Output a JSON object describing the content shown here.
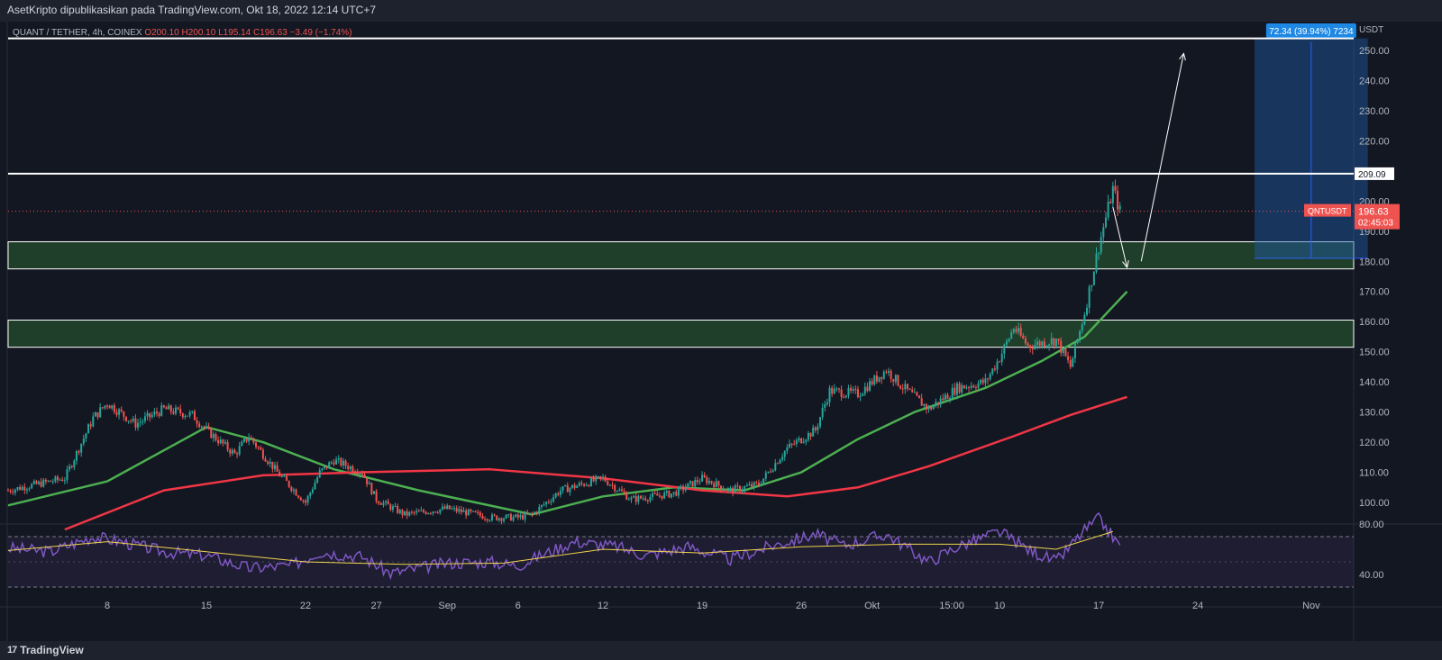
{
  "header": {
    "attribution": "AsetKripto dipublikasikan pada TradingView.com, Okt 18, 2022 12:14 UTC+7"
  },
  "legend": {
    "symbol": "QUANT / TETHER, 4h, COINEX",
    "ohlc": "O200.10 H200.10 L195.14 C196.63 −3.49 (−1.74%)"
  },
  "footer": {
    "brand": "TradingView",
    "logo_icon": "tradingview-logo-icon"
  },
  "colors": {
    "background": "#131722",
    "up": "#26a69a",
    "down": "#ef5350",
    "ma_fast": "#4caf50",
    "ma_slow": "#f23645",
    "rsi": "#7e57c2",
    "rsi_ma": "#f0d34b",
    "zone": "#1f3f2a",
    "measure": "#1e5aa8",
    "accent": "#2962ff"
  },
  "chart_data": {
    "type": "candlestick",
    "symbol": "QNTUSDT",
    "currency": "USDT",
    "timeframe": "4h",
    "y_ticks": [
      100,
      110,
      120,
      130,
      140,
      150,
      160,
      170,
      180,
      190,
      200,
      210,
      220,
      230,
      240,
      250
    ],
    "y_tick_labels": [
      "100.00",
      "110.00",
      "120.00",
      "130.00",
      "140.00",
      "150.00",
      "160.00",
      "170.00",
      "180.00",
      "190.00",
      "200.00",
      "",
      "220.00",
      "230.00",
      "240.00",
      "250.00"
    ],
    "ylim": [
      96,
      256
    ],
    "x_range": [
      "2022-08-01",
      "2022-11-04"
    ],
    "x_ticks": [
      {
        "date": "2022-08-08",
        "label": "8"
      },
      {
        "date": "2022-08-15",
        "label": "15"
      },
      {
        "date": "2022-08-22",
        "label": "22"
      },
      {
        "date": "2022-08-27",
        "label": "27"
      },
      {
        "date": "2022-09-01",
        "label": "Sep"
      },
      {
        "date": "2022-09-06",
        "label": "6"
      },
      {
        "date": "2022-09-12",
        "label": "12"
      },
      {
        "date": "2022-09-19",
        "label": "19"
      },
      {
        "date": "2022-09-26",
        "label": "26"
      },
      {
        "date": "2022-10-01",
        "label": "Okt"
      },
      {
        "date": "2022-10-06 15:00",
        "label": "15:00"
      },
      {
        "date": "2022-10-10",
        "label": "10"
      },
      {
        "date": "2022-10-17",
        "label": "17"
      },
      {
        "date": "2022-10-24",
        "label": "24"
      },
      {
        "date": "2022-11-01",
        "label": "Nov"
      }
    ],
    "price_path": [
      [
        "2022-08-01",
        104
      ],
      [
        "2022-08-05",
        108
      ],
      [
        "2022-08-07",
        128
      ],
      [
        "2022-08-08",
        133
      ],
      [
        "2022-08-10",
        126
      ],
      [
        "2022-08-12",
        131
      ],
      [
        "2022-08-14",
        129
      ],
      [
        "2022-08-15",
        124
      ],
      [
        "2022-08-17",
        116
      ],
      [
        "2022-08-18",
        122
      ],
      [
        "2022-08-20",
        110
      ],
      [
        "2022-08-22",
        100
      ],
      [
        "2022-08-23",
        110
      ],
      [
        "2022-08-24",
        114
      ],
      [
        "2022-08-26",
        110
      ],
      [
        "2022-08-27",
        101
      ],
      [
        "2022-08-29",
        96
      ],
      [
        "2022-09-01",
        98
      ],
      [
        "2022-09-04",
        95
      ],
      [
        "2022-09-06",
        95
      ],
      [
        "2022-09-07",
        96
      ],
      [
        "2022-09-09",
        104
      ],
      [
        "2022-09-12",
        108
      ],
      [
        "2022-09-14",
        101
      ],
      [
        "2022-09-17",
        103
      ],
      [
        "2022-09-19",
        108
      ],
      [
        "2022-09-21",
        104
      ],
      [
        "2022-09-23",
        106
      ],
      [
        "2022-09-24",
        112
      ],
      [
        "2022-09-25",
        118
      ],
      [
        "2022-09-27",
        124
      ],
      [
        "2022-09-28",
        137
      ],
      [
        "2022-09-30",
        136
      ],
      [
        "2022-10-02",
        144
      ],
      [
        "2022-10-03",
        139
      ],
      [
        "2022-10-05",
        131
      ],
      [
        "2022-10-07",
        138
      ],
      [
        "2022-10-09",
        140
      ],
      [
        "2022-10-10",
        148
      ],
      [
        "2022-10-11",
        158
      ],
      [
        "2022-10-12",
        152
      ],
      [
        "2022-10-14",
        154
      ],
      [
        "2022-10-15",
        145
      ],
      [
        "2022-10-16",
        163
      ],
      [
        "2022-10-17",
        185
      ],
      [
        "2022-10-18",
        204
      ],
      [
        "2022-10-18 12:00",
        196.63
      ]
    ],
    "series": [
      {
        "name": "",
        "kind": "line",
        "values": [
          [
            "2022-08-01",
            99
          ],
          [
            "2022-08-08",
            107
          ],
          [
            "2022-08-15",
            125
          ],
          [
            "2022-08-19",
            120
          ],
          [
            "2022-08-24",
            111
          ],
          [
            "2022-08-30",
            104
          ],
          [
            "2022-09-03",
            100
          ],
          [
            "2022-09-07",
            96
          ],
          [
            "2022-09-12",
            102
          ],
          [
            "2022-09-17",
            105
          ],
          [
            "2022-09-22",
            104
          ],
          [
            "2022-09-26",
            110
          ],
          [
            "2022-09-30",
            121
          ],
          [
            "2022-10-04",
            130
          ],
          [
            "2022-10-09",
            138
          ],
          [
            "2022-10-13",
            147
          ],
          [
            "2022-10-16",
            155
          ],
          [
            "2022-10-19",
            170
          ]
        ]
      },
      {
        "name": "",
        "kind": "line",
        "values": [
          [
            "2022-08-05",
            91
          ],
          [
            "2022-08-12",
            104
          ],
          [
            "2022-08-19",
            109
          ],
          [
            "2022-08-26",
            110
          ],
          [
            "2022-09-04",
            111
          ],
          [
            "2022-09-12",
            108
          ],
          [
            "2022-09-19",
            104
          ],
          [
            "2022-09-25",
            102
          ],
          [
            "2022-09-30",
            105
          ],
          [
            "2022-10-05",
            112
          ],
          [
            "2022-10-11",
            122
          ],
          [
            "2022-10-15",
            129
          ],
          [
            "2022-10-19",
            135
          ]
        ]
      }
    ],
    "levels": [
      {
        "price": 254,
        "label": ""
      },
      {
        "price": 209.09,
        "label": "209.09"
      }
    ],
    "zones": [
      {
        "from": 177.5,
        "to": 186.5
      },
      {
        "from": 151.5,
        "to": 160.5
      }
    ],
    "current_price": {
      "symbol": "QNTUSDT",
      "price": "196.63",
      "countdown": "02:45:03"
    },
    "measure": {
      "label": "72.34 (39.94%) 7234",
      "from_price": 181,
      "to_price": 254,
      "from_date": "2022-10-28",
      "to_date": "2022-11-05"
    },
    "arrows": [
      {
        "from": [
          "2022-10-18",
          198
        ],
        "to": [
          "2022-10-19",
          178
        ]
      },
      {
        "from": [
          "2022-10-20",
          180
        ],
        "to": [
          "2022-10-23",
          249
        ]
      }
    ],
    "rsi": {
      "ticks": [
        80,
        40
      ],
      "tick_labels": [
        "80.00",
        "40.00"
      ],
      "ylim": [
        25,
        90
      ],
      "band": [
        70,
        30
      ],
      "values": [
        [
          "2022-08-01",
          61
        ],
        [
          "2022-08-04",
          58
        ],
        [
          "2022-08-07",
          70
        ],
        [
          "2022-08-09",
          66
        ],
        [
          "2022-08-12",
          58
        ],
        [
          "2022-08-15",
          55
        ],
        [
          "2022-08-18",
          45
        ],
        [
          "2022-08-21",
          47
        ],
        [
          "2022-08-23",
          58
        ],
        [
          "2022-08-26",
          54
        ],
        [
          "2022-08-28",
          41
        ],
        [
          "2022-09-01",
          49
        ],
        [
          "2022-09-04",
          50
        ],
        [
          "2022-09-06",
          47
        ],
        [
          "2022-09-08",
          57
        ],
        [
          "2022-09-10",
          66
        ],
        [
          "2022-09-13",
          62
        ],
        [
          "2022-09-15",
          55
        ],
        [
          "2022-09-18",
          62
        ],
        [
          "2022-09-21",
          52
        ],
        [
          "2022-09-24",
          63
        ],
        [
          "2022-09-27",
          72
        ],
        [
          "2022-09-29",
          63
        ],
        [
          "2022-10-02",
          72
        ],
        [
          "2022-10-05",
          50
        ],
        [
          "2022-10-07",
          62
        ],
        [
          "2022-10-10",
          74
        ],
        [
          "2022-10-12",
          60
        ],
        [
          "2022-10-14",
          50
        ],
        [
          "2022-10-16",
          75
        ],
        [
          "2022-10-17",
          84
        ],
        [
          "2022-10-18",
          70
        ],
        [
          "2022-10-18 12:00",
          62
        ]
      ],
      "signal": [
        [
          "2022-08-01",
          59
        ],
        [
          "2022-08-08",
          66
        ],
        [
          "2022-08-15",
          58
        ],
        [
          "2022-08-22",
          50
        ],
        [
          "2022-08-29",
          48
        ],
        [
          "2022-09-05",
          49
        ],
        [
          "2022-09-12",
          60
        ],
        [
          "2022-09-19",
          57
        ],
        [
          "2022-09-26",
          62
        ],
        [
          "2022-10-03",
          64
        ],
        [
          "2022-10-10",
          64
        ],
        [
          "2022-10-14",
          60
        ],
        [
          "2022-10-18",
          74
        ]
      ]
    }
  }
}
